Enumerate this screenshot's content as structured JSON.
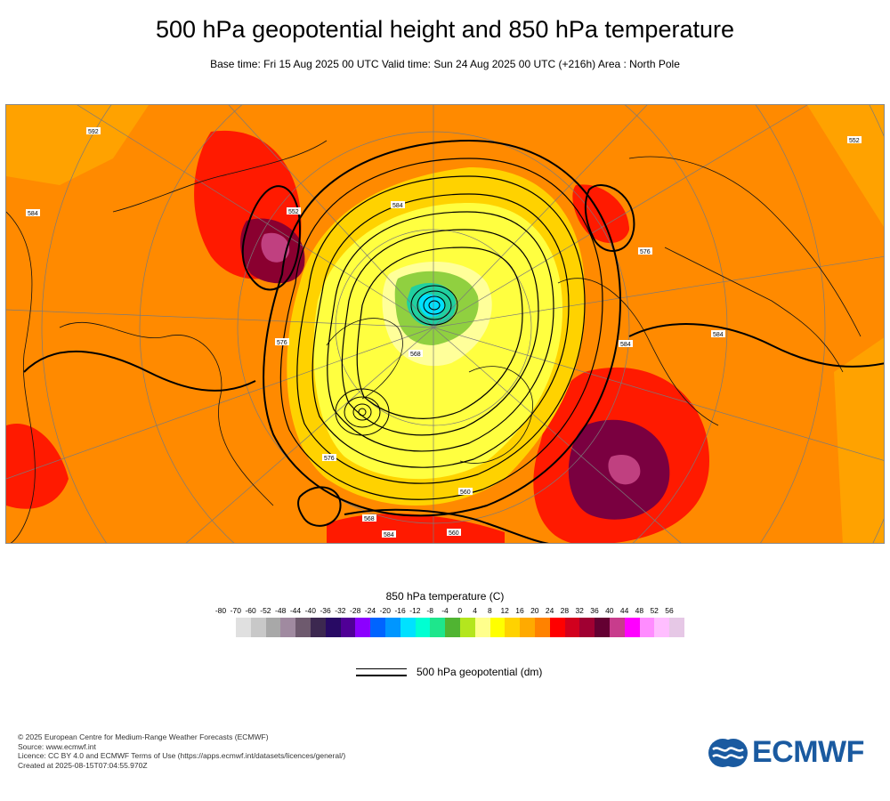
{
  "header": {
    "title": "500 hPa geopotential height and 850 hPa temperature",
    "subtitle": "Base time: Fri 15 Aug 2025 00 UTC Valid time: Sun 24 Aug 2025 00 UTC (+216h) Area : North Pole"
  },
  "map": {
    "projection": "polar stereographic",
    "area": "North Pole",
    "contour_labels": [
      "584",
      "552",
      "576",
      "568",
      "560",
      "576",
      "584",
      "592",
      "584",
      "576",
      "568",
      "584",
      "560",
      "584",
      "552"
    ]
  },
  "legend": {
    "temperature_title": "850 hPa temperature (C)",
    "ticks": [
      "-80",
      "-70",
      "-60",
      "-52",
      "-48",
      "-44",
      "-40",
      "-36",
      "-32",
      "-28",
      "-24",
      "-20",
      "-16",
      "-12",
      "-8",
      "-4",
      "0",
      "4",
      "8",
      "12",
      "16",
      "20",
      "24",
      "28",
      "32",
      "36",
      "40",
      "44",
      "48",
      "52",
      "56"
    ],
    "colors": [
      "#e0e0e0",
      "#c8c8c8",
      "#a8a8a8",
      "#a08aa0",
      "#6e5a6e",
      "#3c2850",
      "#280a64",
      "#500096",
      "#8c00ff",
      "#0064ff",
      "#0096ff",
      "#00e1ff",
      "#00ffd2",
      "#1ee68c",
      "#50b432",
      "#b4e61e",
      "#ffff8c",
      "#ffff00",
      "#ffd200",
      "#ffaa00",
      "#ff8200",
      "#ff0000",
      "#d2001e",
      "#a00032",
      "#640032",
      "#c83c8c",
      "#ff00ff",
      "#ff8cff",
      "#ffbeff",
      "#e6c8e6",
      "#e6e6e6"
    ],
    "geopotential_label": "500 hPa geopotential (dm)"
  },
  "credits": {
    "line1": "© 2025 European Centre for Medium-Range Weather Forecasts (ECMWF)",
    "line2": "Source: www.ecmwf.int",
    "line3": "Licence: CC BY 4.0 and ECMWF Terms of Use (https://apps.ecmwf.int/datasets/licences/general/)",
    "line4": "Created at 2025-08-15T07:04:55.970Z"
  },
  "logo": {
    "text": "ECMWF",
    "color": "#1a5aa0"
  }
}
